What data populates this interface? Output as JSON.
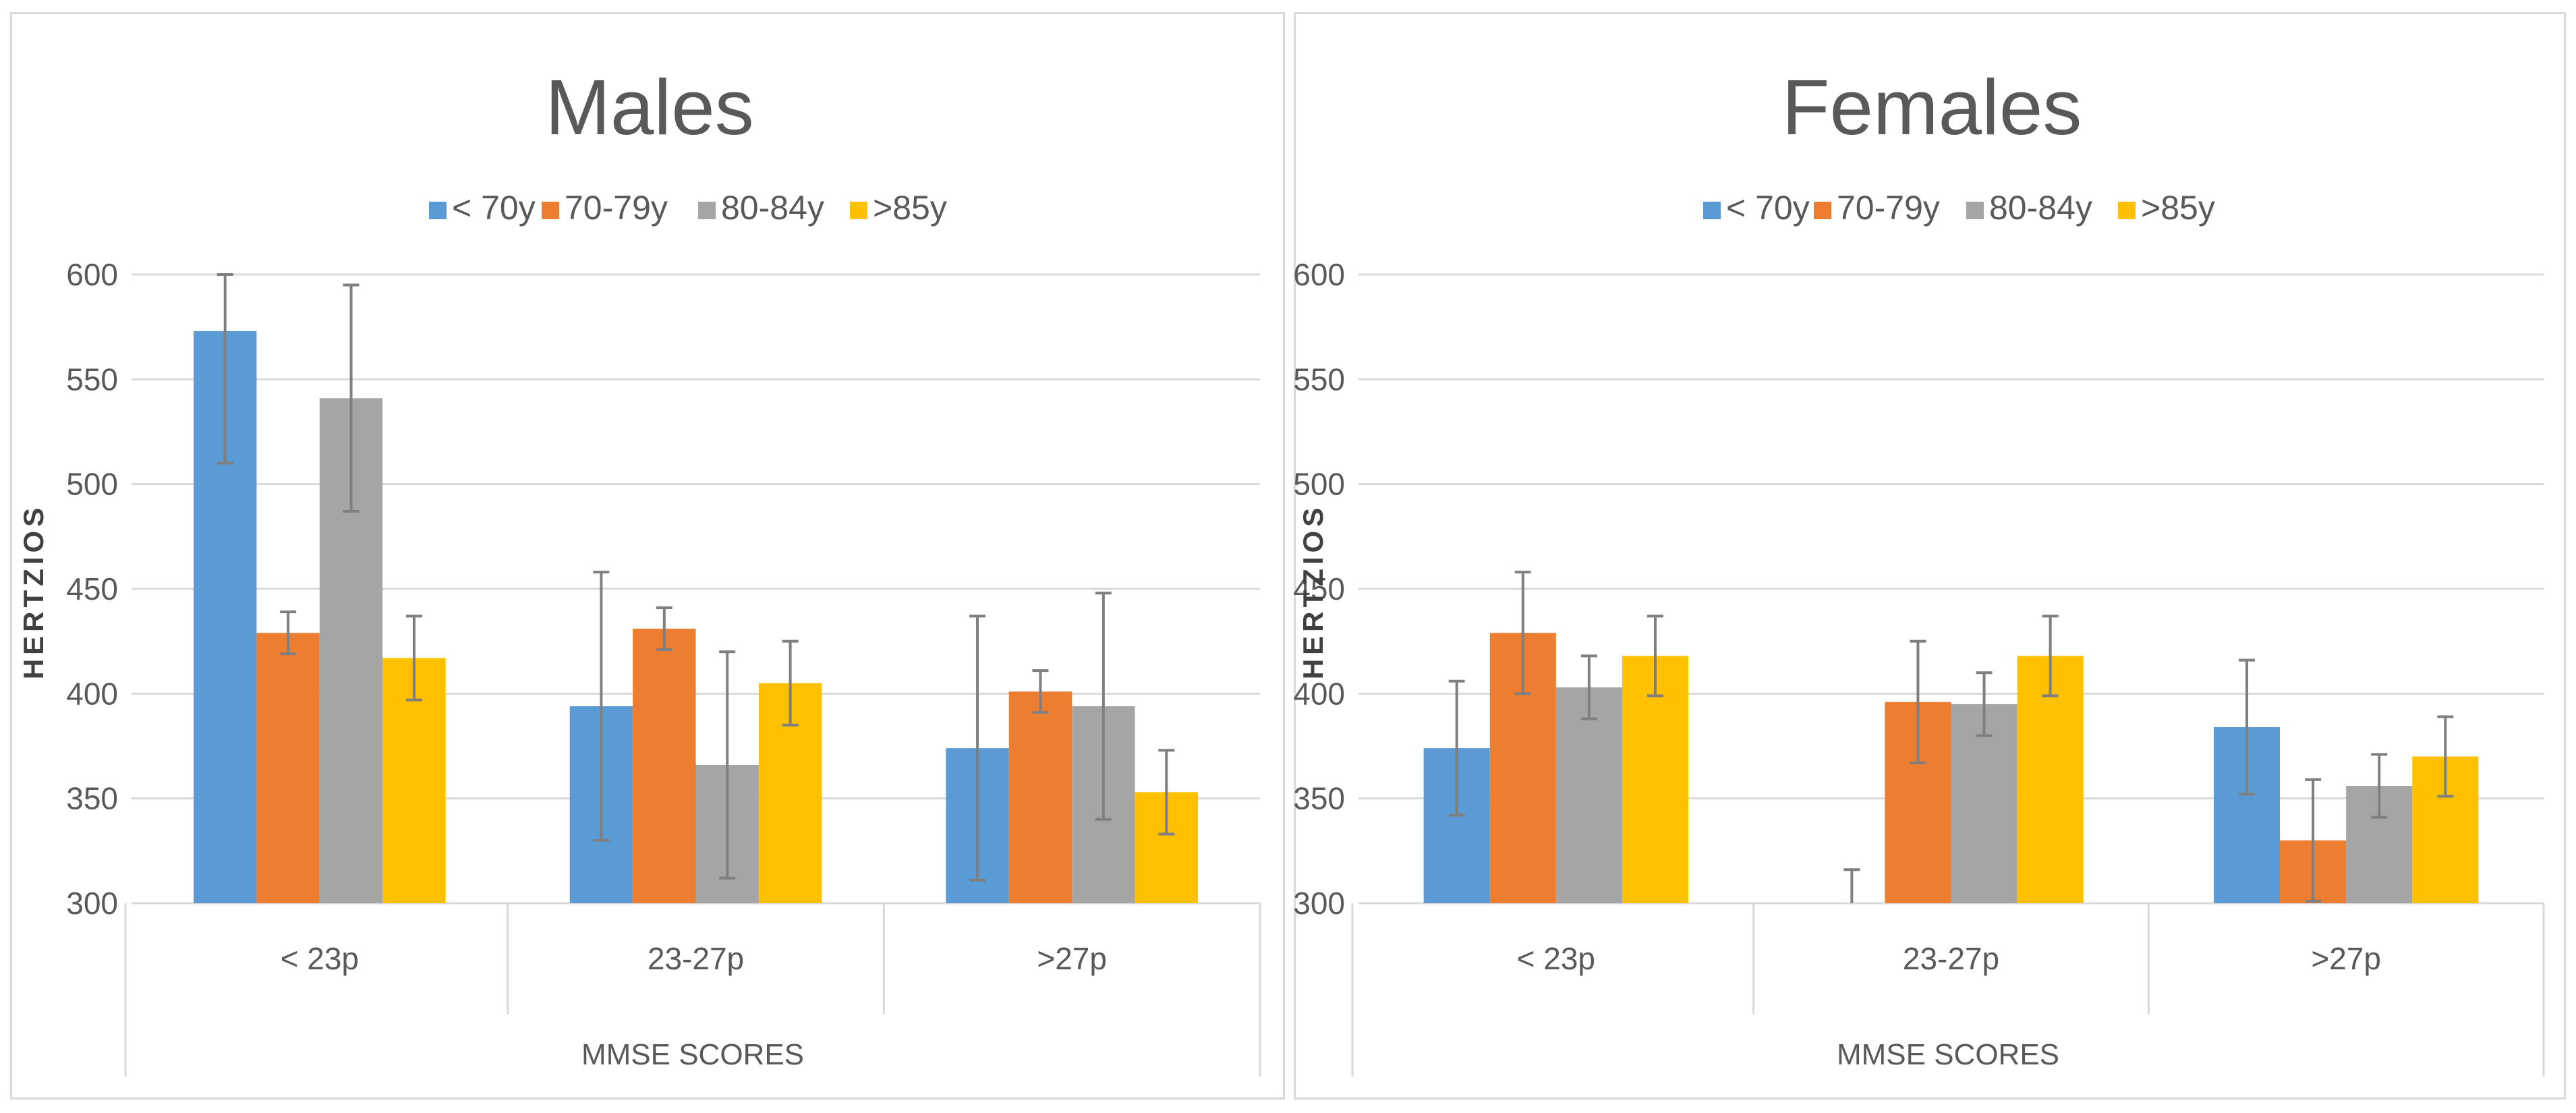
{
  "chart_data": [
    {
      "type": "bar",
      "title": "Males",
      "xlabel": "MMSE SCORES",
      "ylabel": "HERTZIOS",
      "ylim": [
        300,
        600
      ],
      "yticks": [
        "300",
        "350",
        "400",
        "450",
        "500",
        "550",
        "600"
      ],
      "categories": [
        "< 23p",
        "23-27p",
        ">27p"
      ],
      "legend_position": "top-center",
      "grid": true,
      "series": [
        {
          "name": "< 70y",
          "color": "#5B9BD5",
          "values": [
            573,
            394,
            374
          ],
          "error": [
            63,
            64,
            63
          ]
        },
        {
          "name": "70-79y",
          "color": "#ED7D31",
          "values": [
            429,
            431,
            401
          ],
          "error": [
            10,
            10,
            10
          ]
        },
        {
          "name": "80-84y",
          "color": "#A5A5A5",
          "values": [
            541,
            366,
            394
          ],
          "error": [
            54,
            54,
            54
          ]
        },
        {
          "name": ">85y",
          "color": "#FFC000",
          "values": [
            417,
            405,
            353
          ],
          "error": [
            20,
            20,
            20
          ]
        }
      ]
    },
    {
      "type": "bar",
      "title": "Females",
      "xlabel": "MMSE SCORES",
      "ylabel": "HERTZIOS",
      "ylim": [
        300,
        600
      ],
      "yticks": [
        "300",
        "350",
        "400",
        "450",
        "500",
        "550",
        "600"
      ],
      "categories": [
        "< 23p",
        "23-27p",
        ">27p"
      ],
      "legend_position": "top-center",
      "grid": true,
      "series": [
        {
          "name": "< 70y",
          "color": "#5B9BD5",
          "values": [
            374,
            300,
            384
          ],
          "error": [
            32,
            16,
            32
          ]
        },
        {
          "name": "70-79y",
          "color": "#ED7D31",
          "values": [
            429,
            396,
            330
          ],
          "error": [
            29,
            29,
            29
          ]
        },
        {
          "name": "80-84y",
          "color": "#A5A5A5",
          "values": [
            403,
            395,
            356
          ],
          "error": [
            15,
            15,
            15
          ]
        },
        {
          "name": ">85y",
          "color": "#FFC000",
          "values": [
            418,
            418,
            370
          ],
          "error": [
            19,
            19,
            19
          ]
        }
      ]
    }
  ]
}
